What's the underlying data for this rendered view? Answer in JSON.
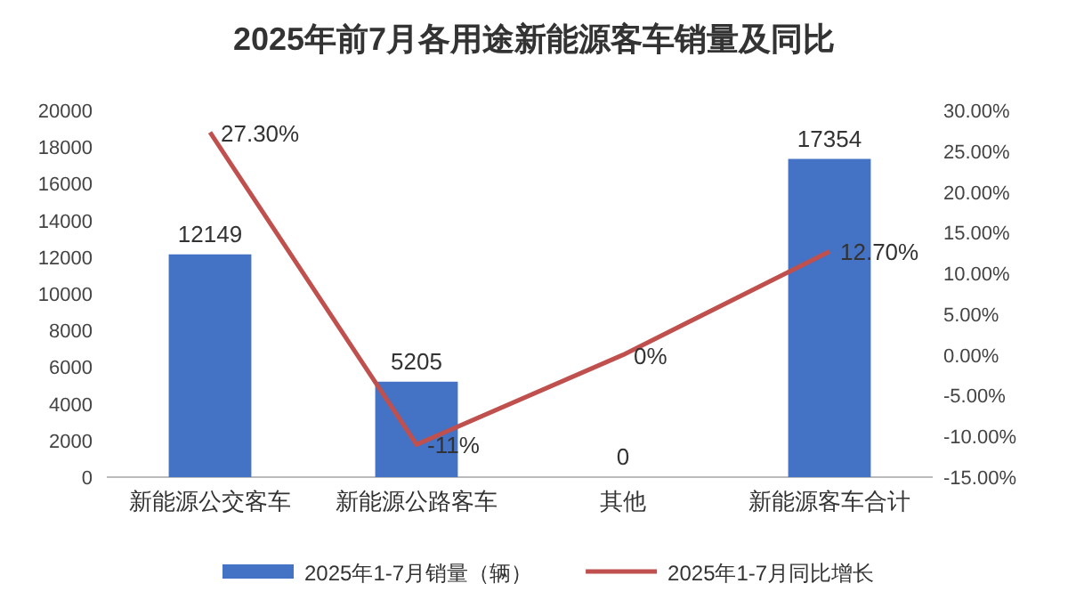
{
  "chart_data": {
    "type": "bar",
    "title": "2025年前7月各用途新能源客车销量及同比",
    "categories": [
      "新能源公交客车",
      "新能源公路客车",
      "其他",
      "新能源客车合计"
    ],
    "series": [
      {
        "name": "2025年1-7月销量（辆）",
        "color": "#4472c4",
        "values": [
          12149,
          5205,
          0,
          17354
        ],
        "value_labels": [
          "12149",
          "5205",
          "0",
          "17354"
        ]
      },
      {
        "name": "2025年1-7月同比增长",
        "type": "line",
        "axis": "y2",
        "color": "#c0504d",
        "values": [
          27.3,
          -11,
          0,
          12.7
        ],
        "value_labels": [
          "27.30%",
          "-11%",
          "0%",
          "12.70%"
        ]
      }
    ],
    "ylim": [
      0,
      20000
    ],
    "yticks": [
      0,
      2000,
      4000,
      6000,
      8000,
      10000,
      12000,
      14000,
      16000,
      18000,
      20000
    ],
    "y2lim": [
      -15,
      30
    ],
    "y2ticks": [
      {
        "value": -15,
        "label": "-15.00%"
      },
      {
        "value": -10,
        "label": "-10.00%"
      },
      {
        "value": -5,
        "label": "-5.00%"
      },
      {
        "value": 0,
        "label": "0.00%"
      },
      {
        "value": 5,
        "label": "5.00%"
      },
      {
        "value": 10,
        "label": "10.00%"
      },
      {
        "value": 15,
        "label": "15.00%"
      },
      {
        "value": 20,
        "label": "20.00%"
      },
      {
        "value": 25,
        "label": "25.00%"
      },
      {
        "value": 30,
        "label": "30.00%"
      }
    ],
    "legend": "bottom",
    "marker": "none",
    "line_style": "solid"
  }
}
